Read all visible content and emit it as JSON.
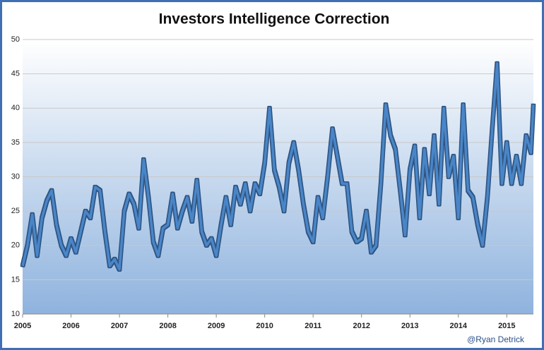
{
  "chart_data": {
    "type": "line",
    "title": "Investors Intelligence Correction",
    "annotation": "@Ryan Detrick",
    "x": [
      2005.0,
      2005.1,
      2005.2,
      2005.3,
      2005.4,
      2005.5,
      2005.6,
      2005.7,
      2005.8,
      2005.9,
      2006.0,
      2006.1,
      2006.2,
      2006.3,
      2006.4,
      2006.5,
      2006.6,
      2006.7,
      2006.8,
      2006.9,
      2007.0,
      2007.1,
      2007.2,
      2007.3,
      2007.4,
      2007.5,
      2007.6,
      2007.7,
      2007.8,
      2007.9,
      2008.0,
      2008.1,
      2008.2,
      2008.3,
      2008.4,
      2008.5,
      2008.6,
      2008.7,
      2008.8,
      2008.9,
      2009.0,
      2009.1,
      2009.2,
      2009.3,
      2009.4,
      2009.5,
      2009.6,
      2009.7,
      2009.8,
      2009.9,
      2010.0,
      2010.1,
      2010.2,
      2010.3,
      2010.4,
      2010.5,
      2010.6,
      2010.7,
      2010.8,
      2010.9,
      2011.0,
      2011.1,
      2011.2,
      2011.3,
      2011.4,
      2011.5,
      2011.6,
      2011.7,
      2011.8,
      2011.9,
      2012.0,
      2012.1,
      2012.2,
      2012.3,
      2012.4,
      2012.5,
      2012.6,
      2012.7,
      2012.8,
      2012.9,
      2013.0,
      2013.1,
      2013.2,
      2013.3,
      2013.4,
      2013.5,
      2013.6,
      2013.7,
      2013.8,
      2013.9,
      2014.0,
      2014.1,
      2014.2,
      2014.3,
      2014.4,
      2014.5,
      2014.6,
      2014.7,
      2014.8,
      2014.9,
      2015.0,
      2015.1,
      2015.2,
      2015.3,
      2015.4,
      2015.5,
      2015.55
    ],
    "series": [
      {
        "name": "Correction",
        "color": "#4a86c8",
        "values": [
          17,
          20,
          24.5,
          18.5,
          24,
          26.5,
          28,
          23,
          20,
          18.5,
          21,
          19,
          22,
          25,
          24,
          28.5,
          28,
          22,
          17,
          18,
          16.5,
          25,
          27.5,
          26,
          22.5,
          32.5,
          27,
          20.5,
          18.5,
          22.5,
          23,
          27.5,
          22.5,
          25,
          27,
          23.5,
          29.5,
          22,
          20,
          21,
          18.5,
          23,
          27,
          23,
          28.5,
          26,
          29,
          25,
          29,
          27.5,
          32,
          40,
          31,
          28.5,
          25,
          32,
          35,
          31,
          26,
          22,
          20.5,
          27,
          24,
          30,
          37,
          33,
          29,
          29,
          22,
          20.5,
          21,
          25,
          19,
          20,
          29,
          40.5,
          36,
          34,
          28,
          21.5,
          31,
          34.5,
          24,
          34,
          27.5,
          36,
          26,
          40,
          30,
          33,
          24,
          40.5,
          28,
          27,
          23,
          20,
          27,
          37,
          46.5,
          29,
          35,
          29,
          33,
          29,
          36,
          33.5,
          40.5
        ]
      }
    ],
    "xlim": [
      2005,
      2015.55
    ],
    "xticks": [
      2005,
      2006,
      2007,
      2008,
      2009,
      2010,
      2011,
      2012,
      2013,
      2014,
      2015
    ],
    "ylim": [
      10,
      50
    ],
    "yticks": [
      10,
      15,
      20,
      25,
      30,
      35,
      40,
      45,
      50
    ],
    "grid": true
  }
}
